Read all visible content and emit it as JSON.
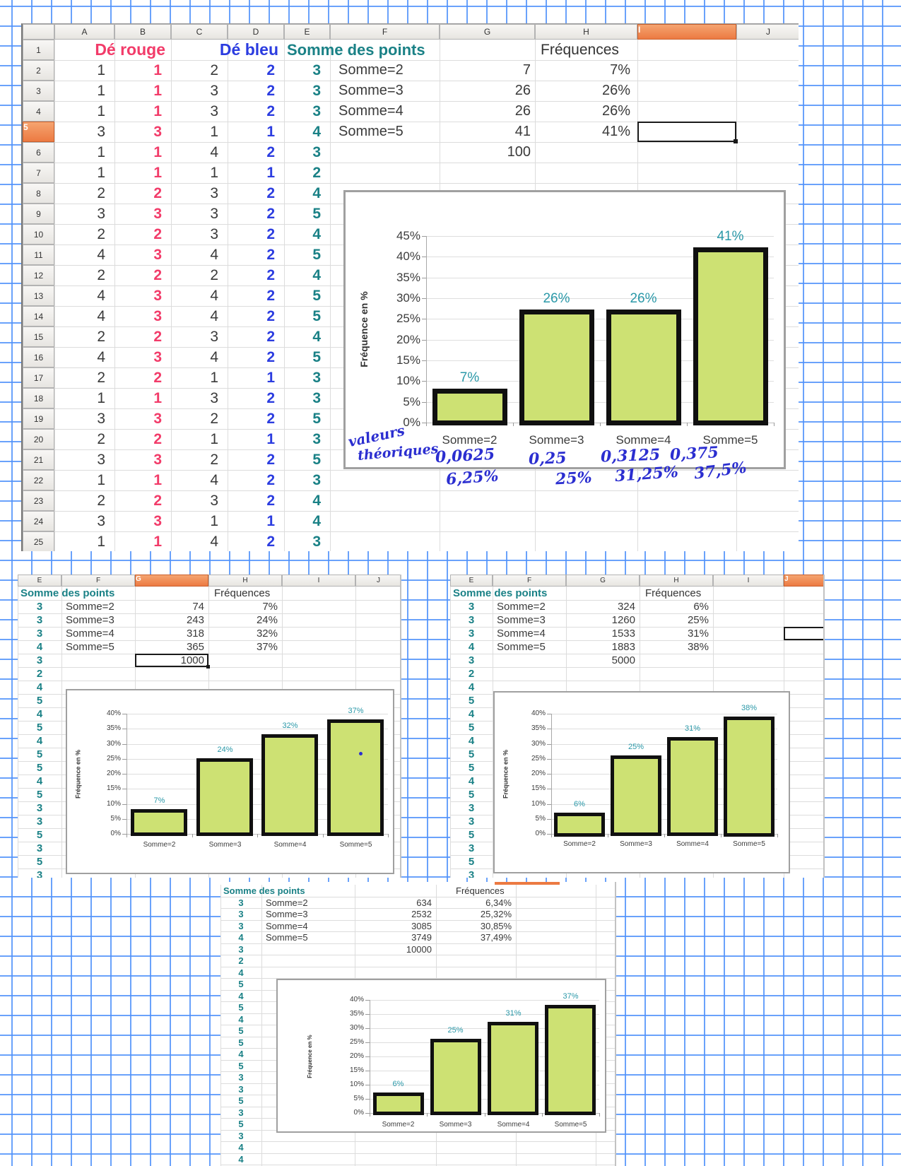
{
  "colors": {
    "pink": "#f23b69",
    "blue": "#2b3ce0",
    "teal": "#1a8186",
    "label_teal": "#2a98a8",
    "bar_fill": "#cde173",
    "bar_border": "#101010",
    "orange_header": "#ec7a42",
    "ink_blue": "#2b2ed0",
    "grid_paper_blue": "#5092fa",
    "cell_text": "#3a3a3a"
  },
  "main_sheet": {
    "col_letters": [
      "A",
      "B",
      "C",
      "D",
      "E",
      "F",
      "G",
      "H",
      "I",
      "J"
    ],
    "selected_col": "I",
    "selected_row": "5",
    "titles": {
      "de_rouge": "Dé rouge",
      "de_bleu": "Dé bleu",
      "somme": "Somme des points",
      "frequences": "Fréquences"
    },
    "dice_rows": [
      [
        "1",
        "1",
        "2",
        "2",
        "3"
      ],
      [
        "1",
        "1",
        "3",
        "2",
        "3"
      ],
      [
        "1",
        "1",
        "3",
        "2",
        "3"
      ],
      [
        "3",
        "3",
        "1",
        "1",
        "4"
      ],
      [
        "1",
        "1",
        "4",
        "2",
        "3"
      ],
      [
        "1",
        "1",
        "1",
        "1",
        "2"
      ],
      [
        "2",
        "2",
        "3",
        "2",
        "4"
      ],
      [
        "3",
        "3",
        "3",
        "2",
        "5"
      ],
      [
        "2",
        "2",
        "3",
        "2",
        "4"
      ],
      [
        "4",
        "3",
        "4",
        "2",
        "5"
      ],
      [
        "2",
        "2",
        "2",
        "2",
        "4"
      ],
      [
        "4",
        "3",
        "4",
        "2",
        "5"
      ],
      [
        "4",
        "3",
        "4",
        "2",
        "5"
      ],
      [
        "2",
        "2",
        "3",
        "2",
        "4"
      ],
      [
        "4",
        "3",
        "4",
        "2",
        "5"
      ],
      [
        "2",
        "2",
        "1",
        "1",
        "3"
      ],
      [
        "1",
        "1",
        "3",
        "2",
        "3"
      ],
      [
        "3",
        "3",
        "2",
        "2",
        "5"
      ],
      [
        "2",
        "2",
        "1",
        "1",
        "3"
      ],
      [
        "3",
        "3",
        "2",
        "2",
        "5"
      ],
      [
        "1",
        "1",
        "4",
        "2",
        "3"
      ],
      [
        "2",
        "2",
        "3",
        "2",
        "4"
      ],
      [
        "3",
        "3",
        "1",
        "1",
        "4"
      ],
      [
        "1",
        "1",
        "4",
        "2",
        "3"
      ]
    ],
    "freq_rows": [
      [
        "Somme=2",
        "7",
        "7%"
      ],
      [
        "Somme=3",
        "26",
        "26%"
      ],
      [
        "Somme=4",
        "26",
        "26%"
      ],
      [
        "Somme=5",
        "41",
        "41%"
      ]
    ],
    "total": "100"
  },
  "annotations": {
    "line1": "valeurs",
    "line2": "théoriques",
    "decimals": [
      "0,0625",
      "0,25",
      "0,3125",
      "0,375"
    ],
    "percents": [
      "6,25%",
      "25%",
      "31,25%",
      "37,5%"
    ]
  },
  "fragments": {
    "n1000": {
      "col_letters": [
        "E",
        "F",
        "G",
        "H",
        "I",
        "J"
      ],
      "selected_col": "G",
      "header_somme": "Somme des points",
      "header_freq": "Fréquences",
      "freq_rows": [
        [
          "3",
          "Somme=2",
          "74",
          "7%"
        ],
        [
          "3",
          "Somme=3",
          "243",
          "24%"
        ],
        [
          "3",
          "Somme=4",
          "318",
          "32%"
        ],
        [
          "4",
          "Somme=5",
          "365",
          "37%"
        ]
      ],
      "total_e": "3",
      "total": "1000",
      "e_values": [
        "2",
        "4",
        "5",
        "4",
        "5",
        "4",
        "5",
        "5",
        "4",
        "5",
        "3",
        "3",
        "5",
        "3",
        "5",
        "3"
      ]
    },
    "n5000": {
      "col_letters": [
        "E",
        "F",
        "G",
        "H",
        "I",
        "J"
      ],
      "selected_col": "J",
      "header_somme": "Somme des points",
      "header_freq": "Fréquences",
      "freq_rows": [
        [
          "3",
          "Somme=2",
          "324",
          "6%"
        ],
        [
          "3",
          "Somme=3",
          "1260",
          "25%"
        ],
        [
          "3",
          "Somme=4",
          "1533",
          "31%"
        ],
        [
          "4",
          "Somme=5",
          "1883",
          "38%"
        ]
      ],
      "total_e": "3",
      "total": "5000",
      "e_values": [
        "2",
        "4",
        "5",
        "4",
        "5",
        "4",
        "5",
        "5",
        "4",
        "5",
        "3",
        "3",
        "5",
        "3",
        "5",
        "3"
      ]
    },
    "n10000": {
      "header_somme": "Somme des points",
      "header_freq": "Fréquences",
      "freq_rows": [
        [
          "3",
          "Somme=2",
          "634",
          "6,34%"
        ],
        [
          "3",
          "Somme=3",
          "2532",
          "25,32%"
        ],
        [
          "3",
          "Somme=4",
          "3085",
          "30,85%"
        ],
        [
          "4",
          "Somme=5",
          "3749",
          "37,49%"
        ]
      ],
      "total_e": "3",
      "total": "10000",
      "e_values": [
        "2",
        "4",
        "5",
        "4",
        "5",
        "4",
        "5",
        "5",
        "4",
        "5",
        "3",
        "3",
        "5",
        "3",
        "5",
        "3",
        "4",
        "4"
      ]
    }
  },
  "chart_data": [
    {
      "id": "main",
      "type": "bar",
      "categories": [
        "Somme=2",
        "Somme=3",
        "Somme=4",
        "Somme=5"
      ],
      "values": [
        7,
        26,
        26,
        41
      ],
      "labels": [
        "7%",
        "26%",
        "26%",
        "41%"
      ],
      "title": "",
      "xlabel": "",
      "ylabel": "Fréquence en %",
      "ylim": [
        0,
        45
      ],
      "ytick_step": 5,
      "grid": true,
      "legend": "none"
    },
    {
      "id": "n1000",
      "type": "bar",
      "categories": [
        "Somme=2",
        "Somme=3",
        "Somme=4",
        "Somme=5"
      ],
      "values": [
        7,
        24,
        32,
        37
      ],
      "labels": [
        "7%",
        "24%",
        "32%",
        "37%"
      ],
      "title": "",
      "xlabel": "",
      "ylabel": "Fréquence en %",
      "ylim": [
        0,
        40
      ],
      "ytick_step": 5,
      "grid": true,
      "legend": "none"
    },
    {
      "id": "n5000",
      "type": "bar",
      "categories": [
        "Somme=2",
        "Somme=3",
        "Somme=4",
        "Somme=5"
      ],
      "values": [
        6,
        25,
        31,
        38
      ],
      "labels": [
        "6%",
        "25%",
        "31%",
        "38%"
      ],
      "title": "",
      "xlabel": "",
      "ylabel": "Fréquence en %",
      "ylim": [
        0,
        40
      ],
      "ytick_step": 5,
      "grid": true,
      "legend": "none"
    },
    {
      "id": "n10000",
      "type": "bar",
      "categories": [
        "Somme=2",
        "Somme=3",
        "Somme=4",
        "Somme=5"
      ],
      "values": [
        6,
        25,
        31,
        37
      ],
      "labels": [
        "6%",
        "25%",
        "31%",
        "37%"
      ],
      "title": "",
      "xlabel": "",
      "ylabel": "Fréquence en %",
      "ylim": [
        0,
        40
      ],
      "ytick_step": 5,
      "grid": true,
      "legend": "none"
    }
  ]
}
